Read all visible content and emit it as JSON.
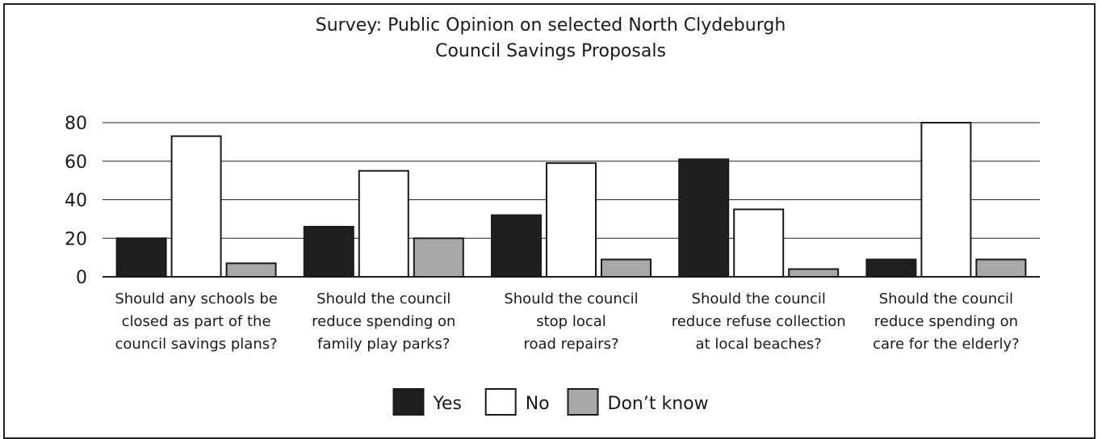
{
  "chart_data": {
    "type": "bar",
    "title": [
      "Survey: Public Opinion on selected North Clydeburgh",
      "Council Savings Proposals"
    ],
    "categories": [
      [
        "Should any schools be",
        "closed as part of the",
        "council savings plans?"
      ],
      [
        "Should the council",
        "reduce spending on",
        "family play parks?"
      ],
      [
        "Should the council",
        "stop local",
        "road repairs?"
      ],
      [
        "Should the council",
        "reduce refuse collection",
        "at local beaches?"
      ],
      [
        "Should the council",
        "reduce spending on",
        "care for the elderly?"
      ]
    ],
    "series": [
      {
        "name": "Yes",
        "color": "#1f1f1f",
        "values": [
          20,
          26,
          32,
          61,
          9
        ]
      },
      {
        "name": "No",
        "color": "#ffffff",
        "values": [
          73,
          55,
          59,
          35,
          80
        ]
      },
      {
        "name": "Don’t know",
        "color": "#a8a8a8",
        "values": [
          7,
          20,
          9,
          4,
          9
        ]
      }
    ],
    "yticks": [
      0,
      20,
      40,
      60,
      80
    ],
    "ylim": [
      0,
      80
    ],
    "grid": true,
    "legend_position": "bottom-center"
  }
}
